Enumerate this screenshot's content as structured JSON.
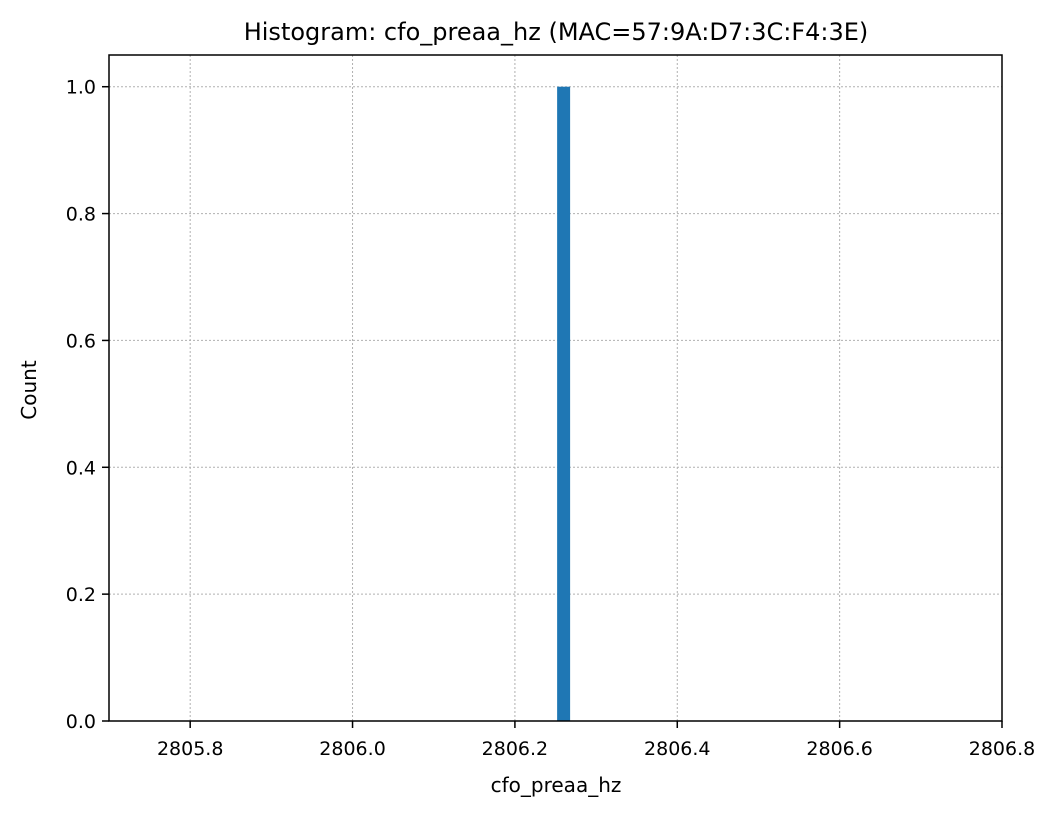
{
  "chart_data": {
    "type": "bar",
    "title": "Histogram: cfo_preaa_hz (MAC=57:9A:D7:3C:F4:3E)",
    "xlabel": "cfo_preaa_hz",
    "ylabel": "Count",
    "xlim": [
      2805.7,
      2806.8
    ],
    "ylim": [
      0,
      1.05
    ],
    "xticks": [
      2805.8,
      2806.0,
      2806.2,
      2806.4,
      2806.6,
      2806.8
    ],
    "xtick_labels": [
      "2805.8",
      "2806.0",
      "2806.2",
      "2806.4",
      "2806.6",
      "2806.8"
    ],
    "yticks": [
      0.0,
      0.2,
      0.4,
      0.6,
      0.8,
      1.0
    ],
    "ytick_labels": [
      "0.0",
      "0.2",
      "0.4",
      "0.6",
      "0.8",
      "1.0"
    ],
    "grid": true,
    "bins": [
      {
        "x0": 2806.252,
        "x1": 2806.268,
        "count": 1
      }
    ],
    "bar_color": "#1f77b4"
  }
}
